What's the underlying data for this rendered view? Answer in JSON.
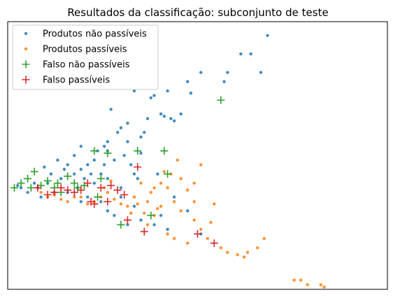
{
  "chart_data": {
    "type": "scatter",
    "title": "Resultados da classificação: subconjunto de teste",
    "xlabel": "",
    "ylabel": "",
    "xlim": [
      -0.9,
      4.8
    ],
    "ylim": [
      -2.2,
      3.6
    ],
    "grid": false,
    "axis_ticks_visible": false,
    "legend_position": "top-left",
    "series": [
      {
        "name": "Produtos não passíveis",
        "marker": "dot",
        "color": "#1f77b4",
        "points": [
          [
            3.0,
            3.3
          ],
          [
            2.6,
            2.9
          ],
          [
            2.75,
            2.9
          ],
          [
            2.0,
            2.5
          ],
          [
            2.4,
            2.5
          ],
          [
            2.9,
            2.5
          ],
          [
            1.8,
            2.3
          ],
          [
            2.35,
            2.3
          ],
          [
            1.0,
            2.1
          ],
          [
            1.5,
            2.1
          ],
          [
            1.85,
            2.05
          ],
          [
            1.3,
            2.0
          ],
          [
            1.25,
            1.95
          ],
          [
            0.65,
            1.7
          ],
          [
            1.4,
            1.6
          ],
          [
            1.45,
            1.55
          ],
          [
            1.55,
            1.5
          ],
          [
            1.6,
            1.45
          ],
          [
            1.7,
            1.6
          ],
          [
            1.2,
            1.5
          ],
          [
            0.9,
            1.4
          ],
          [
            0.8,
            1.3
          ],
          [
            1.15,
            1.2
          ],
          [
            1.1,
            1.1
          ],
          [
            0.6,
            1.0
          ],
          [
            0.55,
            0.9
          ],
          [
            0.45,
            0.8
          ],
          [
            1.1,
            0.75
          ],
          [
            0.85,
            0.7
          ],
          [
            0.55,
            0.5
          ],
          [
            0.5,
            0.3
          ],
          [
            0.8,
            0.0
          ],
          [
            0.6,
            0.2
          ],
          [
            0.4,
            0.1
          ],
          [
            0.35,
            0.3
          ],
          [
            0.3,
            -0.2
          ],
          [
            0.2,
            -0.3
          ],
          [
            0.15,
            0.0
          ],
          [
            0.0,
            -0.1
          ],
          [
            -0.1,
            0.2
          ],
          [
            -0.2,
            -0.1
          ],
          [
            -0.3,
            0.1
          ],
          [
            -0.4,
            -0.2
          ],
          [
            -0.45,
            0.0
          ],
          [
            -0.5,
            0.1
          ],
          [
            -0.6,
            -0.1
          ],
          [
            -0.7,
            0.0
          ],
          [
            -0.75,
            0.05
          ],
          [
            0.1,
            0.3
          ],
          [
            0.2,
            0.4
          ],
          [
            0.3,
            0.5
          ],
          [
            0.5,
            -0.3
          ],
          [
            0.6,
            -0.5
          ],
          [
            0.7,
            -0.6
          ],
          [
            0.9,
            -0.8
          ],
          [
            1.0,
            -0.4
          ],
          [
            1.1,
            -0.7
          ],
          [
            1.3,
            -0.8
          ],
          [
            1.4,
            -0.6
          ],
          [
            1.5,
            -0.9
          ],
          [
            1.8,
            -0.5
          ],
          [
            2.0,
            -1.0
          ],
          [
            1.05,
            0.2
          ],
          [
            1.0,
            0.3
          ],
          [
            0.0,
            0.5
          ],
          [
            0.1,
            0.7
          ],
          [
            0.2,
            0.9
          ],
          [
            0.7,
            0.6
          ],
          [
            0.6,
            0.8
          ],
          [
            0.4,
            0.6
          ],
          [
            0.9,
            1.0
          ],
          [
            0.95,
            0.5
          ],
          [
            0.25,
            0.2
          ],
          [
            -0.05,
            0.4
          ],
          [
            -0.15,
            0.6
          ],
          [
            -0.25,
            0.3
          ],
          [
            -0.35,
            0.45
          ],
          [
            0.75,
            1.2
          ],
          [
            1.35,
            0.3
          ],
          [
            1.6,
            -0.2
          ],
          [
            0.8,
            -0.2
          ]
        ]
      },
      {
        "name": "Produtos passíveis",
        "marker": "dot",
        "color": "#ff7f0e",
        "points": [
          [
            3.4,
            -2.0
          ],
          [
            3.5,
            -2.0
          ],
          [
            3.6,
            -2.1
          ],
          [
            3.8,
            -2.1
          ],
          [
            3.85,
            -2.15
          ],
          [
            2.3,
            -1.3
          ],
          [
            2.4,
            -1.4
          ],
          [
            2.55,
            -1.45
          ],
          [
            2.7,
            -1.4
          ],
          [
            2.65,
            -1.5
          ],
          [
            2.85,
            -1.3
          ],
          [
            2.95,
            -1.1
          ],
          [
            2.0,
            -0.9
          ],
          [
            2.1,
            -1.1
          ],
          [
            1.8,
            -1.2
          ],
          [
            1.6,
            -1.1
          ],
          [
            1.5,
            -1.0
          ],
          [
            1.9,
            -0.7
          ],
          [
            2.15,
            -0.75
          ],
          [
            1.3,
            -0.6
          ],
          [
            1.4,
            -0.4
          ],
          [
            1.6,
            -0.3
          ],
          [
            1.7,
            -0.5
          ],
          [
            1.2,
            -0.3
          ],
          [
            1.5,
            0.0
          ],
          [
            1.7,
            0.2
          ],
          [
            1.9,
            0.1
          ],
          [
            1.3,
            0.0
          ],
          [
            1.1,
            0.1
          ],
          [
            1.0,
            -0.2
          ],
          [
            1.25,
            -0.1
          ],
          [
            1.4,
            0.1
          ],
          [
            0.9,
            -0.4
          ],
          [
            0.8,
            -0.35
          ],
          [
            0.7,
            -0.25
          ],
          [
            0.6,
            -0.1
          ],
          [
            0.4,
            -0.3
          ],
          [
            0.3,
            -0.35
          ],
          [
            0.2,
            -0.2
          ],
          [
            0.1,
            -0.2
          ],
          [
            0.0,
            -0.3
          ],
          [
            -0.1,
            -0.25
          ],
          [
            -0.2,
            -0.15
          ],
          [
            -0.3,
            -0.2
          ],
          [
            -0.4,
            -0.1
          ],
          [
            1.65,
            0.6
          ],
          [
            1.55,
            0.3
          ],
          [
            1.8,
            -0.05
          ],
          [
            1.15,
            -0.55
          ],
          [
            1.45,
            0.35
          ],
          [
            2.0,
            0.5
          ],
          [
            1.9,
            -0.3
          ],
          [
            1.2,
            -0.8
          ],
          [
            0.5,
            -0.2
          ],
          [
            0.55,
            0.0
          ],
          [
            0.65,
            0.15
          ],
          [
            1.05,
            -0.35
          ],
          [
            0.95,
            -0.55
          ],
          [
            1.35,
            -0.45
          ],
          [
            2.2,
            -0.35
          ]
        ]
      },
      {
        "name": "Falso não passíveis",
        "marker": "plus",
        "color": "#2ca02c",
        "points": [
          [
            2.3,
            1.9
          ],
          [
            0.4,
            0.8
          ],
          [
            0.6,
            0.75
          ],
          [
            1.05,
            0.8
          ],
          [
            1.45,
            0.8
          ],
          [
            -0.5,
            0.35
          ],
          [
            -0.6,
            0.2
          ],
          [
            -0.7,
            0.1
          ],
          [
            -0.55,
            0.0
          ],
          [
            -0.4,
            0.05
          ],
          [
            -0.3,
            0.15
          ],
          [
            -0.2,
            0.0
          ],
          [
            -0.15,
            0.1
          ],
          [
            0.0,
            0.25
          ],
          [
            0.1,
            0.1
          ],
          [
            0.15,
            0.0
          ],
          [
            0.25,
            0.05
          ],
          [
            0.5,
            0.2
          ],
          [
            0.45,
            -0.2
          ],
          [
            1.5,
            0.3
          ],
          [
            1.25,
            -0.6
          ],
          [
            0.8,
            -0.8
          ],
          [
            -0.8,
            0.0
          ],
          [
            -0.1,
            -0.1
          ]
        ]
      },
      {
        "name": "Falso passíveis",
        "marker": "plus",
        "color": "#d62728",
        "points": [
          [
            1.05,
            0.45
          ],
          [
            2.2,
            -1.2
          ],
          [
            1.95,
            -1.0
          ],
          [
            1.15,
            -0.95
          ],
          [
            0.9,
            -0.7
          ],
          [
            0.6,
            -0.3
          ],
          [
            0.75,
            -0.05
          ],
          [
            0.5,
            0.0
          ],
          [
            0.3,
            0.1
          ],
          [
            0.2,
            -0.05
          ],
          [
            0.1,
            -0.1
          ],
          [
            0.0,
            -0.05
          ],
          [
            -0.1,
            0.0
          ],
          [
            -0.2,
            -0.1
          ],
          [
            -0.3,
            -0.15
          ],
          [
            -0.45,
            0.0
          ],
          [
            0.35,
            -0.3
          ],
          [
            0.4,
            -0.35
          ],
          [
            0.65,
            0.05
          ],
          [
            0.85,
            -0.15
          ]
        ]
      }
    ]
  }
}
